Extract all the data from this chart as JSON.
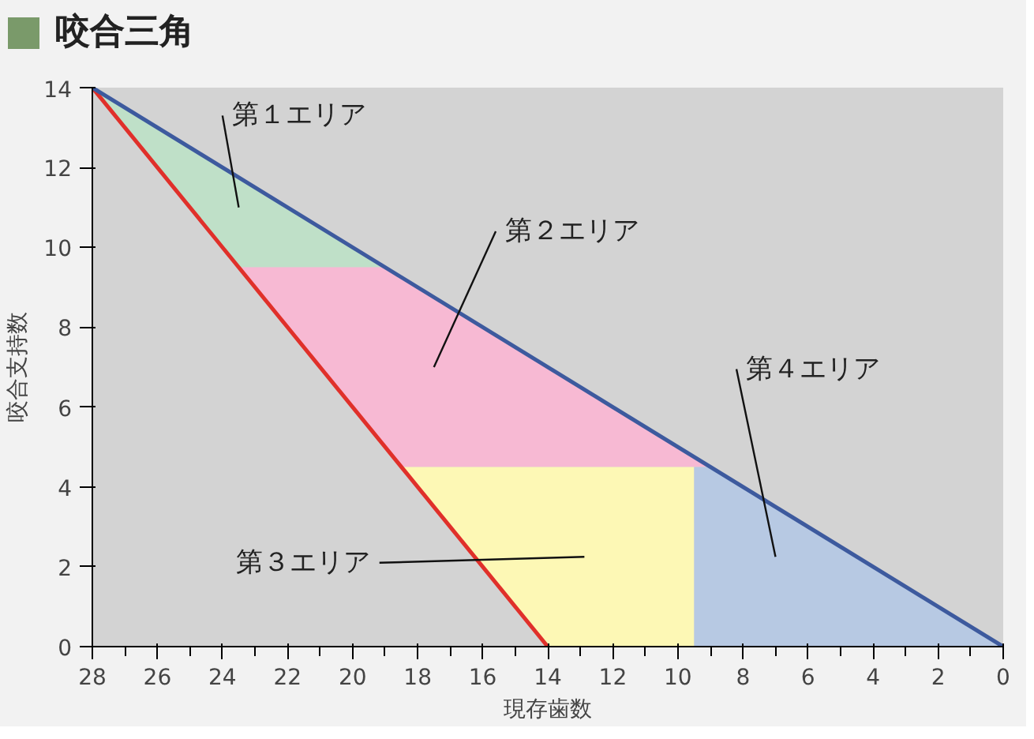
{
  "chart_data": {
    "type": "area",
    "title": "咬合三角",
    "xlabel": "現存歯数",
    "ylabel": "咬合支持数",
    "xlim": [
      28,
      0
    ],
    "ylim": [
      0,
      14
    ],
    "xticks": [
      28,
      26,
      24,
      22,
      20,
      18,
      16,
      14,
      12,
      10,
      8,
      6,
      4,
      2,
      0
    ],
    "yticks": [
      0,
      2,
      4,
      6,
      8,
      10,
      12,
      14
    ],
    "grid": false,
    "series": [
      {
        "color": "#bfe0c8",
        "x": [
          28,
          19,
          23.5
        ],
        "values": [
          14,
          9.5,
          9.5
        ]
      },
      {
        "color": "#f7b9d3",
        "x": [
          23.5,
          19,
          9,
          18.5
        ],
        "values": [
          9.5,
          9.5,
          4.5,
          4.5
        ]
      },
      {
        "color": "#fdf8b5",
        "x": [
          18.5,
          9.5,
          9.5,
          14
        ],
        "values": [
          4.5,
          4.5,
          0,
          0
        ]
      },
      {
        "color": "#b7c9e3",
        "x": [
          9.5,
          9,
          0,
          9.5
        ],
        "values": [
          4.5,
          4.5,
          0,
          0
        ]
      },
      {
        "type": "line",
        "color": "#e0302a",
        "x": [
          28,
          14
        ],
        "values": [
          14,
          0
        ]
      },
      {
        "type": "line",
        "color": "#3d5a9e",
        "x": [
          28,
          0
        ],
        "values": [
          14,
          0
        ]
      }
    ],
    "annotations": [
      "第１エリア",
      "第２エリア",
      "第３エリア",
      "第４エリア"
    ]
  }
}
